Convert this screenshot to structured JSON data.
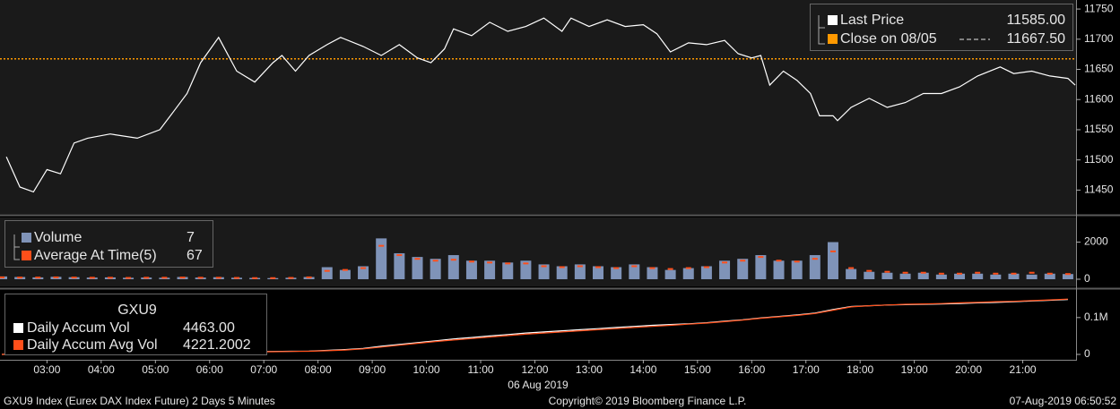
{
  "chart_data": [
    {
      "type": "line",
      "xlim": [
        "02:08",
        "21:59"
      ],
      "ylim": [
        11412,
        11762
      ],
      "yticks": [
        11450,
        11500,
        11550,
        11600,
        11650,
        11700,
        11750
      ],
      "series": [
        {
          "name": "Last Price",
          "color": "#ffffff",
          "legend_value": "11585.00",
          "x": [
            "02:15",
            "02:30",
            "02:45",
            "03:00",
            "03:15",
            "03:30",
            "03:45",
            "04:10",
            "04:40",
            "05:05",
            "05:20",
            "05:35",
            "05:50",
            "06:10",
            "06:30",
            "06:50",
            "07:10",
            "07:20",
            "07:35",
            "07:50",
            "08:10",
            "08:25",
            "08:50",
            "09:10",
            "09:30",
            "09:50",
            "10:05",
            "10:20",
            "10:30",
            "10:50",
            "11:10",
            "11:30",
            "11:50",
            "12:10",
            "12:30",
            "12:40",
            "13:00",
            "13:20",
            "13:40",
            "14:00",
            "14:15",
            "14:30",
            "14:50",
            "15:10",
            "15:30",
            "15:45",
            "16:00",
            "16:10",
            "16:20",
            "16:35",
            "16:50",
            "17:05",
            "17:15",
            "17:30",
            "17:35",
            "17:50",
            "18:10",
            "18:30",
            "18:50",
            "19:10",
            "19:30",
            "19:50",
            "20:10",
            "20:35",
            "20:50",
            "21:10",
            "21:30",
            "21:50",
            "21:58"
          ],
          "values": [
            11505,
            11455,
            11447,
            11484,
            11477,
            11528,
            11536,
            11543,
            11536,
            11550,
            11580,
            11610,
            11661,
            11703,
            11647,
            11629,
            11661,
            11673,
            11647,
            11673,
            11691,
            11703,
            11688,
            11673,
            11691,
            11669,
            11661,
            11684,
            11717,
            11706,
            11728,
            11713,
            11721,
            11735,
            11713,
            11735,
            11721,
            11732,
            11721,
            11724,
            11709,
            11679,
            11694,
            11691,
            11698,
            11676,
            11669,
            11673,
            11624,
            11647,
            11632,
            11610,
            11573,
            11573,
            11565,
            11587,
            11602,
            11587,
            11595,
            11610,
            11610,
            11621,
            11639,
            11654,
            11643,
            11647,
            11639,
            11635,
            11624
          ]
        }
      ],
      "reference_lines": [
        {
          "name": "Close on 08/05",
          "value": 11667.5,
          "value_label": "11667.50",
          "color": "#ff9900"
        }
      ]
    },
    {
      "type": "bar",
      "xlim": [
        "02:08",
        "21:59"
      ],
      "ylim": [
        0,
        3240
      ],
      "yticks": [
        0,
        2000
      ],
      "x": [
        "02:10",
        "02:30",
        "02:50",
        "03:10",
        "03:30",
        "03:50",
        "04:10",
        "04:30",
        "04:50",
        "05:10",
        "05:30",
        "05:50",
        "06:10",
        "06:30",
        "06:50",
        "07:10",
        "07:30",
        "07:50",
        "08:10",
        "08:30",
        "08:50",
        "09:10",
        "09:30",
        "09:50",
        "10:10",
        "10:30",
        "10:50",
        "11:10",
        "11:30",
        "11:50",
        "12:10",
        "12:30",
        "12:50",
        "13:10",
        "13:30",
        "13:50",
        "14:10",
        "14:30",
        "14:50",
        "15:10",
        "15:30",
        "15:50",
        "16:10",
        "16:30",
        "16:50",
        "17:10",
        "17:30",
        "17:50",
        "18:10",
        "18:30",
        "18:50",
        "19:10",
        "19:30",
        "19:50",
        "20:10",
        "20:30",
        "20:50",
        "21:10",
        "21:30",
        "21:50"
      ],
      "series": [
        {
          "name": "Volume",
          "color": "#7f93b8",
          "legend_value": "7",
          "values": [
            150,
            120,
            100,
            130,
            110,
            90,
            100,
            80,
            90,
            80,
            120,
            90,
            110,
            80,
            70,
            60,
            80,
            120,
            650,
            500,
            700,
            2200,
            1400,
            1200,
            1100,
            1300,
            1000,
            1000,
            900,
            1000,
            800,
            700,
            800,
            700,
            650,
            800,
            650,
            500,
            600,
            700,
            1000,
            1100,
            1300,
            1000,
            1000,
            1300,
            2000,
            550,
            400,
            350,
            300,
            350,
            250,
            300,
            300,
            250,
            300,
            250,
            300,
            280
          ]
        },
        {
          "name": "Average At Time(5)",
          "color": "#ff4f1a",
          "legend_value": "67",
          "style": "dash",
          "values": [
            100,
            90,
            90,
            100,
            90,
            80,
            80,
            70,
            80,
            80,
            90,
            80,
            80,
            70,
            60,
            60,
            70,
            100,
            450,
            500,
            600,
            1800,
            1300,
            1100,
            1000,
            1050,
            950,
            900,
            850,
            850,
            700,
            650,
            700,
            650,
            600,
            700,
            600,
            550,
            600,
            650,
            900,
            1000,
            1200,
            1000,
            950,
            1100,
            1500,
            600,
            450,
            400,
            350,
            350,
            300,
            300,
            350,
            300,
            300,
            350,
            300,
            280
          ]
        }
      ]
    },
    {
      "type": "line",
      "title": "GXU9",
      "xlim": [
        "02:08",
        "21:59"
      ],
      "xticks": [
        "03:00",
        "04:00",
        "05:00",
        "06:00",
        "07:00",
        "08:00",
        "09:00",
        "10:00",
        "11:00",
        "12:00",
        "13:00",
        "14:00",
        "15:00",
        "16:00",
        "17:00",
        "18:00",
        "19:00",
        "20:00",
        "21:00"
      ],
      "xlabel": "06 Aug 2019",
      "ylim": [
        0,
        170000
      ],
      "yticks": [
        0,
        {
          "value": 100000,
          "label": "0.1M"
        }
      ],
      "x": [
        "02:10",
        "02:30",
        "02:50",
        "03:10",
        "03:30",
        "03:50",
        "04:10",
        "04:30",
        "04:50",
        "05:10",
        "05:30",
        "05:50",
        "06:10",
        "06:30",
        "06:50",
        "07:10",
        "07:30",
        "07:50",
        "08:10",
        "08:30",
        "08:50",
        "09:10",
        "09:30",
        "09:50",
        "10:10",
        "10:30",
        "10:50",
        "11:10",
        "11:30",
        "11:50",
        "12:10",
        "12:30",
        "12:50",
        "13:10",
        "13:30",
        "13:50",
        "14:10",
        "14:30",
        "14:50",
        "15:10",
        "15:30",
        "15:50",
        "16:10",
        "16:30",
        "16:50",
        "17:10",
        "17:30",
        "17:50",
        "18:10",
        "18:30",
        "18:50",
        "19:10",
        "19:30",
        "19:50",
        "20:10",
        "20:30",
        "20:50",
        "21:10",
        "21:30",
        "21:50"
      ],
      "series": [
        {
          "name": "Daily Accum Vol",
          "color": "#ffffff",
          "legend_value": "4463.00",
          "values": [
            0,
            1000,
            1500,
            2000,
            2500,
            3000,
            3500,
            4000,
            4500,
            5000,
            5500,
            6000,
            6500,
            7000,
            7500,
            8000,
            8500,
            9000,
            11000,
            13000,
            16000,
            22000,
            27000,
            32000,
            37000,
            42000,
            46000,
            50000,
            54000,
            58000,
            61000,
            64000,
            67000,
            70000,
            73000,
            76000,
            79000,
            81000,
            83000,
            86000,
            90000,
            94000,
            99000,
            103000,
            107000,
            112000,
            122000,
            130000,
            132000,
            134000,
            135000,
            136000,
            137000,
            138000,
            140000,
            141000,
            143000,
            145000,
            147000,
            149000
          ]
        },
        {
          "name": "Daily Accum Avg Vol",
          "color": "#ff4f1a",
          "legend_value": "4221.2002",
          "values": [
            0,
            900,
            1400,
            1900,
            2400,
            2800,
            3300,
            3700,
            4200,
            4600,
            5100,
            5500,
            6000,
            6500,
            7000,
            7400,
            7900,
            8500,
            10000,
            12000,
            15000,
            20000,
            25000,
            30000,
            35000,
            39000,
            43000,
            47000,
            51000,
            55000,
            58000,
            61000,
            64000,
            67000,
            70000,
            73000,
            76000,
            79000,
            82000,
            85000,
            89000,
            93000,
            98000,
            102000,
            106000,
            111000,
            120000,
            129000,
            132000,
            134000,
            136000,
            137000,
            138000,
            140000,
            141000,
            143000,
            144000,
            146000,
            148000,
            150000
          ]
        }
      ]
    }
  ],
  "footer": {
    "left": "GXU9 Index (Eurex DAX Index Future) 2 Days 5 Minutes",
    "center": "Copyright© 2019 Bloomberg Finance L.P.",
    "right": "07-Aug-2019 06:50:52"
  }
}
